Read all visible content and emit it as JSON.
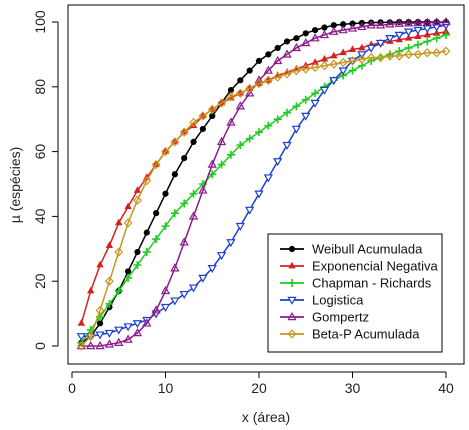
{
  "chart_data": {
    "type": "line",
    "xlabel": "x (área)",
    "ylabel": "µ (espécies)",
    "xlim": [
      0,
      42
    ],
    "ylim": [
      -3,
      103
    ],
    "xticks": [
      0,
      10,
      20,
      30,
      40
    ],
    "yticks": [
      0,
      20,
      40,
      60,
      80,
      100
    ],
    "grid": false,
    "legend_position": "bottom-right",
    "x": [
      1,
      2,
      3,
      4,
      5,
      6,
      7,
      8,
      9,
      10,
      11,
      12,
      13,
      14,
      15,
      16,
      17,
      18,
      19,
      20,
      21,
      22,
      23,
      24,
      25,
      26,
      27,
      28,
      29,
      30,
      31,
      32,
      33,
      34,
      35,
      36,
      37,
      38,
      39,
      40
    ],
    "series": [
      {
        "name": "Weibull Acumulada",
        "color": "#000000",
        "marker": "filled-circle",
        "values": [
          1,
          3,
          7,
          12,
          17,
          23,
          29,
          35,
          41,
          47,
          53,
          58,
          63,
          67,
          71,
          75,
          79,
          82,
          85,
          88,
          90,
          92,
          94,
          95,
          96.5,
          97.5,
          98.3,
          99,
          99.3,
          99.5,
          99.7,
          99.8,
          99.9,
          99.9,
          100,
          100,
          100,
          100,
          100,
          100
        ]
      },
      {
        "name": "Exponencial Negativa",
        "color": "#d62020",
        "marker": "filled-triangle",
        "values": [
          7,
          17,
          25,
          31,
          38,
          43,
          48,
          52,
          56,
          60,
          63,
          66,
          68,
          71,
          73,
          75,
          76.5,
          78,
          79.5,
          81,
          82,
          83.5,
          84.5,
          85.5,
          86.5,
          87.5,
          88.5,
          89.5,
          90.5,
          91.5,
          92,
          93,
          93.5,
          94,
          94.5,
          95,
          95.5,
          96,
          96.5,
          97
        ]
      },
      {
        "name": "Chapman - Richards",
        "color": "#22cc22",
        "marker": "plus",
        "values": [
          1,
          5,
          9,
          13,
          17,
          21,
          25,
          29,
          33,
          37,
          41,
          44,
          47,
          50,
          53,
          56,
          59,
          62,
          64,
          66,
          68,
          70,
          72,
          74,
          76,
          78,
          80,
          82,
          83.5,
          85,
          86.5,
          88,
          89,
          90,
          91,
          92,
          93,
          94,
          95,
          96
        ]
      },
      {
        "name": "Logistica",
        "color": "#1a3fd1",
        "marker": "open-down-triangle",
        "values": [
          3,
          3,
          3.5,
          4,
          5,
          6,
          7,
          8,
          10,
          12,
          14,
          16,
          18,
          21,
          24,
          28,
          32,
          37,
          42,
          47,
          52,
          57,
          62,
          67,
          71,
          75,
          79,
          82,
          85,
          88,
          90,
          92,
          93.5,
          95,
          96,
          97,
          97.5,
          98,
          98.5,
          99
        ]
      },
      {
        "name": "Gompertz",
        "color": "#8b1a8b",
        "marker": "open-triangle",
        "values": [
          0,
          0,
          0,
          0.5,
          1,
          2,
          4,
          7,
          11,
          17,
          24,
          32,
          40,
          48,
          56,
          63,
          69,
          74,
          78,
          82,
          85,
          88,
          90,
          92,
          93.5,
          95,
          96,
          97,
          97.5,
          98,
          98.5,
          99,
          99,
          99.3,
          99.5,
          99.6,
          99.7,
          99.8,
          99.9,
          100
        ]
      },
      {
        "name": "Beta-P Acumulada",
        "color": "#c8961e",
        "marker": "open-diamond",
        "values": [
          0,
          3,
          11,
          20,
          29,
          38,
          45,
          51,
          56,
          60,
          63,
          66,
          69,
          71,
          73,
          75,
          77,
          78,
          79.5,
          81,
          82,
          83,
          84,
          85,
          85.5,
          86,
          86.5,
          87,
          87.5,
          88,
          88.5,
          89,
          89,
          89.5,
          89.5,
          90,
          90,
          90.5,
          90.5,
          91
        ]
      }
    ]
  }
}
